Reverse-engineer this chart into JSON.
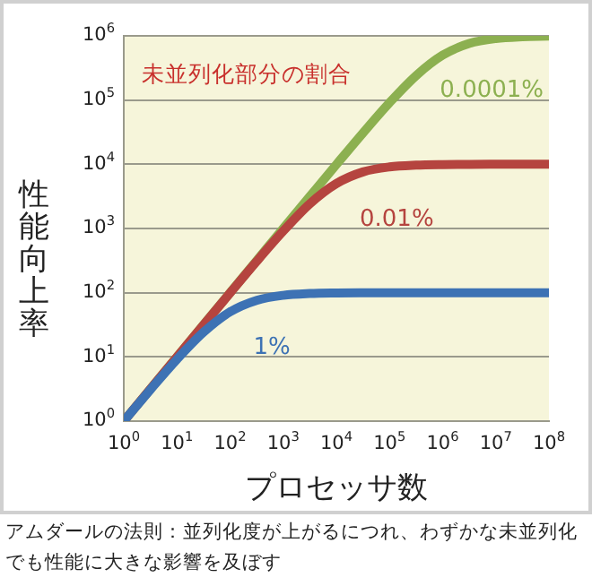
{
  "chart_data": {
    "type": "line",
    "xlabel": "プロセッサ数",
    "ylabel": "性能向上率",
    "annotations": [
      "未並列化部分の割合",
      "アムダールの法則：並列化度が上がるにつれ、わずかな未並列化でも性能に大きな影響を及ぼす"
    ],
    "log": "xy",
    "grid": "y",
    "legend": false,
    "marker": "none",
    "line_style": "solid",
    "xlim": [
      1,
      100000000
    ],
    "ylim": [
      1,
      1000000
    ],
    "xticks": [
      {
        "value": 1,
        "label": "10$^{0}$"
      },
      {
        "value": 10,
        "label": "10$^{1}$"
      },
      {
        "value": 100,
        "label": "10$^{2}$"
      },
      {
        "value": 1000,
        "label": "10$^{3}$"
      },
      {
        "value": 10000,
        "label": "10$^{4}$"
      },
      {
        "value": 100000,
        "label": "10$^{5}$"
      },
      {
        "value": 1000000,
        "label": "10$^{6}$"
      },
      {
        "value": 10000000,
        "label": "10$^{7}$"
      },
      {
        "value": 100000000,
        "label": "10$^{8}$"
      }
    ],
    "yticks": [
      {
        "value": 1,
        "label": "10$^{0}$"
      },
      {
        "value": 10,
        "label": "10$^{1}$"
      },
      {
        "value": 100,
        "label": "10$^{2}$"
      },
      {
        "value": 1000,
        "label": "10$^{3}$"
      },
      {
        "value": 10000,
        "label": "10$^{4}$"
      },
      {
        "value": 100000,
        "label": "10$^{5}$"
      },
      {
        "value": 1000000,
        "label": "10$^{6}$"
      }
    ],
    "x": [
      1,
      3.16,
      10,
      31.6,
      100,
      316,
      1000,
      3162,
      10000,
      31623,
      100000,
      316228,
      1000000,
      3162278,
      10000000,
      31622777,
      100000000
    ],
    "series": [
      {
        "name": "1%",
        "color": "#3d72b4",
        "values": [
          1,
          3.09,
          9.17,
          24.2,
          50.3,
          76.1,
          91,
          97,
          99,
          99.7,
          99.9,
          100,
          100,
          100,
          100,
          100,
          100
        ]
      },
      {
        "name": "0.01%",
        "color": "#b5443f",
        "values": [
          1,
          3.16,
          10,
          31.5,
          99,
          307,
          909,
          2420,
          5000,
          7600,
          9090,
          9690,
          9900,
          9970,
          9990,
          9997,
          9999
        ]
      },
      {
        "name": "0.0001%",
        "color": "#8cb050",
        "values": [
          1,
          3.16,
          10,
          31.6,
          100,
          316,
          1000,
          3150,
          9900,
          30700,
          90900,
          240000,
          500000,
          760000,
          909000,
          969000,
          990000
        ]
      }
    ]
  }
}
